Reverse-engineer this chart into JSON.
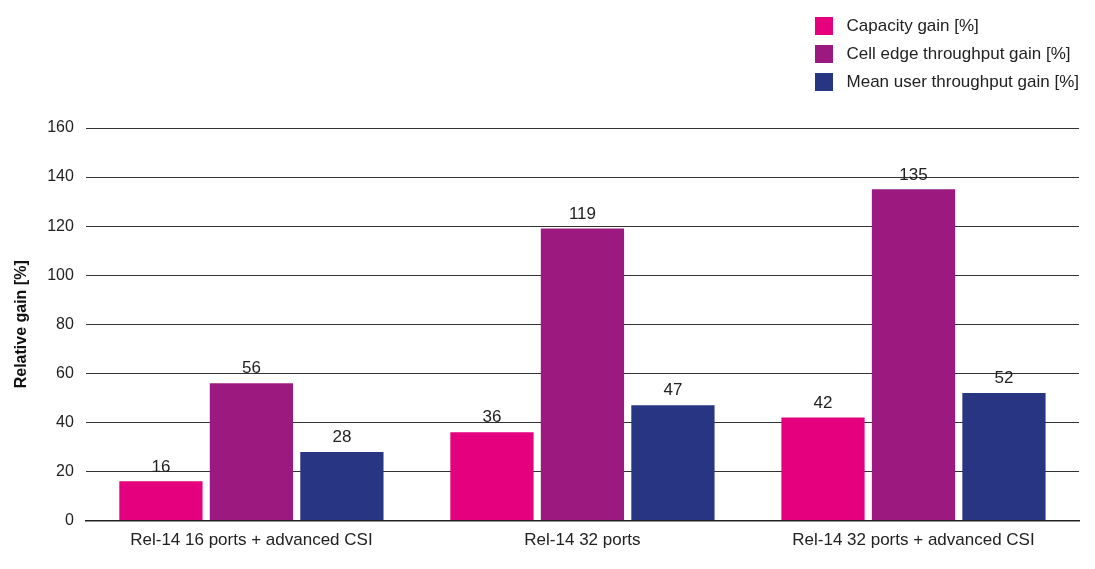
{
  "chart_data": {
    "type": "bar",
    "ylabel": "Relative gain [%]",
    "categories": [
      "Rel-14 16 ports + advanced CSI",
      "Rel-14 32 ports",
      "Rel-14 32 ports + advanced CSI"
    ],
    "series": [
      {
        "name": "Capacity gain [%]",
        "color": "#e5007d",
        "values": [
          16,
          36,
          42
        ]
      },
      {
        "name": "Cell edge throughput gain [%]",
        "color": "#9c1a7f",
        "values": [
          56,
          119,
          135
        ]
      },
      {
        "name": "Mean user throughput gain [%]",
        "color": "#283583",
        "values": [
          28,
          47,
          52
        ]
      }
    ],
    "ylim": [
      0,
      160
    ],
    "yticks": [
      0,
      20,
      40,
      60,
      80,
      100,
      120,
      140,
      160
    ],
    "grid": "y",
    "legend": "top right",
    "data_labels": true
  }
}
